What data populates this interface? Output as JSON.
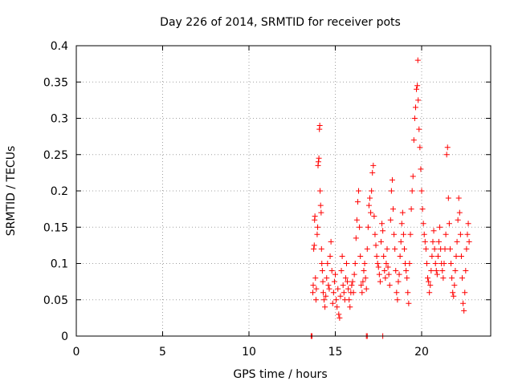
{
  "chart_data": {
    "type": "scatter",
    "title": "Day 226 of 2014, SRMTID for receiver pots",
    "xlabel": "GPS time / hours",
    "ylabel": "SRMTID / TECUs",
    "xlim": [
      0,
      24
    ],
    "ylim": [
      0,
      0.4
    ],
    "xticks": [
      0,
      5,
      10,
      15,
      20
    ],
    "xtick_labels": [
      "0",
      "5",
      "10",
      "15",
      "20"
    ],
    "yticks": [
      0,
      0.05,
      0.1,
      0.15,
      0.2,
      0.25,
      0.3,
      0.35,
      0.4
    ],
    "ytick_labels": [
      "0",
      "0.05",
      "0.1",
      "0.15",
      "0.2",
      "0.25",
      "0.3",
      "0.35",
      "0.4"
    ],
    "grid": true,
    "marker": "+",
    "color": "#ff0000",
    "series": [
      {
        "name": "pots",
        "points": [
          [
            13.6,
            0.0
          ],
          [
            13.65,
            0.0
          ],
          [
            16.8,
            0.0
          ],
          [
            16.85,
            0.0
          ],
          [
            17.75,
            0.0
          ],
          [
            13.7,
            0.06
          ],
          [
            13.72,
            0.07
          ],
          [
            13.75,
            0.12
          ],
          [
            13.78,
            0.125
          ],
          [
            13.8,
            0.16
          ],
          [
            13.82,
            0.165
          ],
          [
            13.85,
            0.08
          ],
          [
            13.88,
            0.05
          ],
          [
            13.9,
            0.065
          ],
          [
            13.95,
            0.14
          ],
          [
            13.98,
            0.15
          ],
          [
            14.0,
            0.235
          ],
          [
            14.02,
            0.24
          ],
          [
            14.05,
            0.245
          ],
          [
            14.08,
            0.285
          ],
          [
            14.1,
            0.29
          ],
          [
            14.12,
            0.2
          ],
          [
            14.15,
            0.18
          ],
          [
            14.18,
            0.17
          ],
          [
            14.2,
            0.12
          ],
          [
            14.22,
            0.1
          ],
          [
            14.25,
            0.09
          ],
          [
            14.28,
            0.075
          ],
          [
            14.3,
            0.06
          ],
          [
            14.35,
            0.05
          ],
          [
            14.4,
            0.04
          ],
          [
            14.45,
            0.055
          ],
          [
            14.5,
            0.08
          ],
          [
            14.55,
            0.1
          ],
          [
            14.6,
            0.07
          ],
          [
            14.65,
            0.065
          ],
          [
            14.7,
            0.11
          ],
          [
            14.75,
            0.13
          ],
          [
            14.8,
            0.09
          ],
          [
            14.85,
            0.045
          ],
          [
            14.9,
            0.06
          ],
          [
            14.95,
            0.075
          ],
          [
            15.0,
            0.085
          ],
          [
            15.05,
            0.05
          ],
          [
            15.1,
            0.04
          ],
          [
            15.15,
            0.065
          ],
          [
            15.2,
            0.03
          ],
          [
            15.25,
            0.025
          ],
          [
            15.3,
            0.055
          ],
          [
            15.35,
            0.09
          ],
          [
            15.4,
            0.11
          ],
          [
            15.45,
            0.07
          ],
          [
            15.5,
            0.06
          ],
          [
            15.55,
            0.05
          ],
          [
            15.6,
            0.08
          ],
          [
            15.65,
            0.1
          ],
          [
            15.7,
            0.075
          ],
          [
            15.75,
            0.065
          ],
          [
            15.8,
            0.05
          ],
          [
            15.85,
            0.04
          ],
          [
            15.9,
            0.06
          ],
          [
            15.95,
            0.07
          ],
          [
            16.0,
            0.075
          ],
          [
            16.05,
            0.06
          ],
          [
            16.1,
            0.085
          ],
          [
            16.15,
            0.1
          ],
          [
            16.2,
            0.135
          ],
          [
            16.25,
            0.16
          ],
          [
            16.3,
            0.185
          ],
          [
            16.35,
            0.2
          ],
          [
            16.4,
            0.15
          ],
          [
            16.45,
            0.11
          ],
          [
            16.5,
            0.07
          ],
          [
            16.55,
            0.06
          ],
          [
            16.6,
            0.075
          ],
          [
            16.65,
            0.09
          ],
          [
            16.7,
            0.1
          ],
          [
            16.75,
            0.08
          ],
          [
            16.8,
            0.065
          ],
          [
            16.85,
            0.12
          ],
          [
            16.9,
            0.15
          ],
          [
            16.95,
            0.18
          ],
          [
            17.0,
            0.19
          ],
          [
            17.05,
            0.17
          ],
          [
            17.1,
            0.2
          ],
          [
            17.15,
            0.225
          ],
          [
            17.2,
            0.235
          ],
          [
            17.25,
            0.165
          ],
          [
            17.3,
            0.14
          ],
          [
            17.35,
            0.125
          ],
          [
            17.4,
            0.11
          ],
          [
            17.45,
            0.1
          ],
          [
            17.5,
            0.095
          ],
          [
            17.55,
            0.085
          ],
          [
            17.6,
            0.075
          ],
          [
            17.65,
            0.13
          ],
          [
            17.7,
            0.155
          ],
          [
            17.75,
            0.145
          ],
          [
            17.8,
            0.11
          ],
          [
            17.85,
            0.09
          ],
          [
            17.9,
            0.08
          ],
          [
            17.95,
            0.1
          ],
          [
            18.0,
            0.12
          ],
          [
            18.05,
            0.095
          ],
          [
            18.1,
            0.085
          ],
          [
            18.15,
            0.07
          ],
          [
            18.2,
            0.16
          ],
          [
            18.25,
            0.2
          ],
          [
            18.3,
            0.215
          ],
          [
            18.35,
            0.175
          ],
          [
            18.4,
            0.14
          ],
          [
            18.45,
            0.12
          ],
          [
            18.5,
            0.09
          ],
          [
            18.55,
            0.06
          ],
          [
            18.6,
            0.05
          ],
          [
            18.65,
            0.075
          ],
          [
            18.7,
            0.085
          ],
          [
            18.75,
            0.11
          ],
          [
            18.8,
            0.13
          ],
          [
            18.85,
            0.155
          ],
          [
            18.9,
            0.17
          ],
          [
            18.95,
            0.14
          ],
          [
            19.0,
            0.12
          ],
          [
            19.05,
            0.1
          ],
          [
            19.1,
            0.09
          ],
          [
            19.15,
            0.08
          ],
          [
            19.2,
            0.06
          ],
          [
            19.25,
            0.045
          ],
          [
            19.3,
            0.1
          ],
          [
            19.35,
            0.14
          ],
          [
            19.4,
            0.175
          ],
          [
            19.45,
            0.2
          ],
          [
            19.5,
            0.22
          ],
          [
            19.55,
            0.27
          ],
          [
            19.6,
            0.3
          ],
          [
            19.65,
            0.315
          ],
          [
            19.7,
            0.34
          ],
          [
            19.75,
            0.345
          ],
          [
            19.78,
            0.38
          ],
          [
            19.8,
            0.325
          ],
          [
            19.85,
            0.285
          ],
          [
            19.9,
            0.26
          ],
          [
            19.95,
            0.23
          ],
          [
            20.0,
            0.2
          ],
          [
            20.05,
            0.175
          ],
          [
            20.1,
            0.155
          ],
          [
            20.15,
            0.14
          ],
          [
            20.2,
            0.13
          ],
          [
            20.25,
            0.12
          ],
          [
            20.3,
            0.1
          ],
          [
            20.35,
            0.08
          ],
          [
            20.4,
            0.075
          ],
          [
            20.45,
            0.06
          ],
          [
            20.5,
            0.07
          ],
          [
            20.55,
            0.09
          ],
          [
            20.6,
            0.11
          ],
          [
            20.65,
            0.13
          ],
          [
            20.7,
            0.145
          ],
          [
            20.75,
            0.12
          ],
          [
            20.8,
            0.1
          ],
          [
            20.85,
            0.09
          ],
          [
            20.9,
            0.085
          ],
          [
            20.95,
            0.11
          ],
          [
            21.0,
            0.13
          ],
          [
            21.05,
            0.15
          ],
          [
            21.1,
            0.12
          ],
          [
            21.15,
            0.1
          ],
          [
            21.2,
            0.09
          ],
          [
            21.25,
            0.08
          ],
          [
            21.3,
            0.1
          ],
          [
            21.35,
            0.12
          ],
          [
            21.4,
            0.14
          ],
          [
            21.45,
            0.25
          ],
          [
            21.5,
            0.26
          ],
          [
            21.55,
            0.19
          ],
          [
            21.6,
            0.155
          ],
          [
            21.65,
            0.12
          ],
          [
            21.7,
            0.1
          ],
          [
            21.75,
            0.08
          ],
          [
            21.8,
            0.06
          ],
          [
            21.85,
            0.055
          ],
          [
            21.9,
            0.07
          ],
          [
            21.95,
            0.09
          ],
          [
            22.0,
            0.11
          ],
          [
            22.05,
            0.13
          ],
          [
            22.1,
            0.16
          ],
          [
            22.15,
            0.19
          ],
          [
            22.2,
            0.17
          ],
          [
            22.25,
            0.14
          ],
          [
            22.3,
            0.11
          ],
          [
            22.35,
            0.08
          ],
          [
            22.4,
            0.045
          ],
          [
            22.45,
            0.035
          ],
          [
            22.5,
            0.06
          ],
          [
            22.55,
            0.09
          ],
          [
            22.6,
            0.12
          ],
          [
            22.65,
            0.14
          ],
          [
            22.7,
            0.155
          ],
          [
            22.75,
            0.13
          ]
        ]
      }
    ]
  }
}
